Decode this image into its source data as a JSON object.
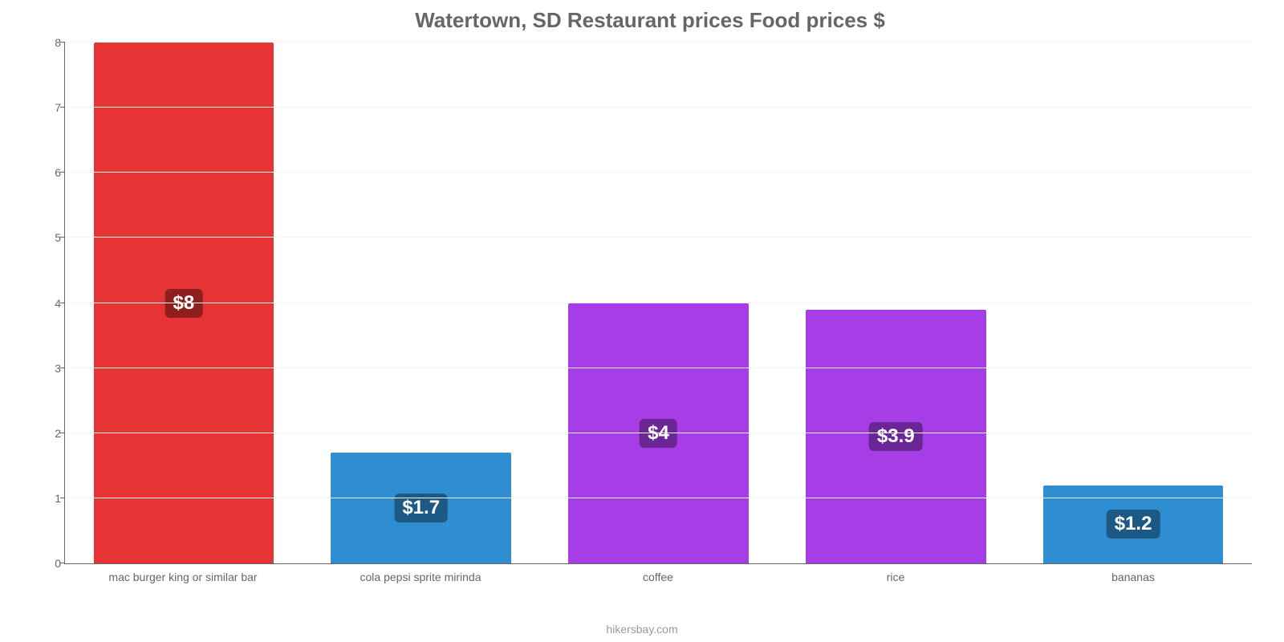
{
  "chart": {
    "type": "bar",
    "title": "Watertown, SD Restaurant prices Food prices $",
    "title_fontsize": 26,
    "title_color": "#666666",
    "footer": "hikersbay.com",
    "footer_color": "#999999",
    "background_color": "#ffffff",
    "axis_color": "#666666",
    "grid_color": "#f5f5f5",
    "tick_label_color": "#666666",
    "tick_label_fontsize": 14,
    "value_label_fontsize": 24,
    "value_label_text_color": "#ffffff",
    "ylim": [
      0,
      8
    ],
    "ytick_step": 1,
    "yticks": [
      {
        "v": 0,
        "label": "0"
      },
      {
        "v": 1,
        "label": "1"
      },
      {
        "v": 2,
        "label": "2"
      },
      {
        "v": 3,
        "label": "3"
      },
      {
        "v": 4,
        "label": "4"
      },
      {
        "v": 5,
        "label": "5"
      },
      {
        "v": 6,
        "label": "6"
      },
      {
        "v": 7,
        "label": "7"
      },
      {
        "v": 8,
        "label": "8"
      }
    ],
    "bar_width_pct": 76,
    "categories": [
      "mac burger king or similar bar",
      "cola pepsi sprite mirinda",
      "coffee",
      "rice",
      "bananas"
    ],
    "values": [
      8,
      1.7,
      4,
      3.9,
      1.2
    ],
    "value_labels": [
      "$8",
      "$1.7",
      "$4",
      "$3.9",
      "$1.2"
    ],
    "bar_colors": [
      "#e63333",
      "#2e8ed1",
      "#a63de6",
      "#a63de6",
      "#2e8ed1"
    ],
    "badge_colors": [
      "#8f1f1f",
      "#1c5a85",
      "#6a2694",
      "#6a2694",
      "#1c5a85"
    ]
  }
}
